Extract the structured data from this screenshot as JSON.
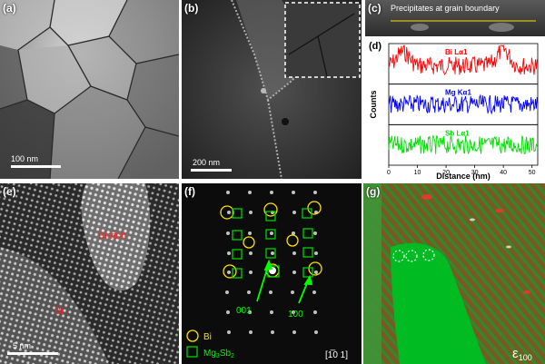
{
  "panels": {
    "a": {
      "label": "(a)",
      "scale": "100 nm"
    },
    "b": {
      "label": "(b)",
      "scale": "200 nm"
    },
    "c": {
      "label": "(c)",
      "caption": "Precipitates at grain boundary"
    },
    "d": {
      "label": "(d)"
    },
    "e": {
      "label": "(e)",
      "scale": "5 nm",
      "region_a": "Bi-rich",
      "region_b": "Bi"
    },
    "f": {
      "label": "(f)",
      "arrow_left": "001",
      "arrow_right": "100",
      "zone_axis": "[1̅0 1]",
      "legend_bi": "Bi",
      "legend_mg_main": "Mg",
      "legend_mg_sub3": "3",
      "legend_mg_sb": "Sb",
      "legend_mg_sub2": "2"
    },
    "g": {
      "label": "(g)",
      "symbol": "ε",
      "symbol_sub": "100"
    }
  },
  "chart_data": {
    "type": "line",
    "xlabel": "Distance (nm)",
    "ylabel": "Counts",
    "xlim": [
      0,
      52
    ],
    "x_ticks": [
      0,
      10,
      20,
      30,
      40,
      50
    ],
    "series": [
      {
        "name": "Bi Lα1",
        "color": "#ff0000",
        "baseline": 0.55,
        "peaks": [
          [
            5,
            0.35
          ],
          [
            40,
            0.4
          ]
        ]
      },
      {
        "name": "Mg Kα1",
        "color": "#0000ff",
        "baseline": 0.5,
        "peaks": []
      },
      {
        "name": "Sb Lα1",
        "color": "#00dd00",
        "baseline": 0.5,
        "peaks": []
      }
    ]
  }
}
